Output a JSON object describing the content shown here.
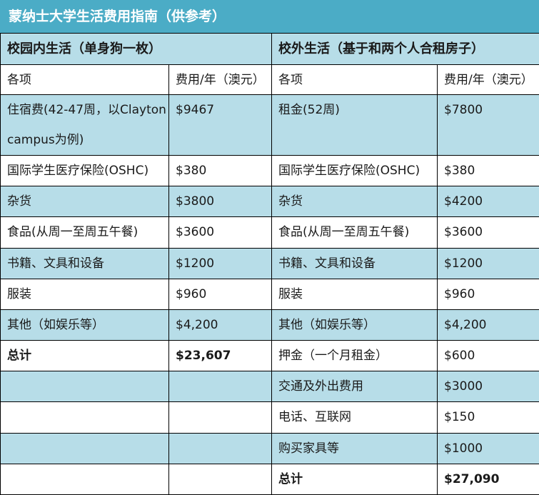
{
  "title": "蒙纳士大学生活费用指南（供参考）",
  "campus": {
    "heading": "校园内生活（单身狗一枚）",
    "col_item": "各项",
    "col_cost": "费用/年（澳元）",
    "rows": [
      {
        "item": "住宿费(42-47周，以Clayton campus为例)",
        "cost": "$9467"
      },
      {
        "item": "国际学生医疗保险(OSHC)",
        "cost": "$380"
      },
      {
        "item": "杂货",
        "cost": "$3800"
      },
      {
        "item": "食品(从周一至周五午餐)",
        "cost": "$3600"
      },
      {
        "item": "书籍、文具和设备",
        "cost": "$1200"
      },
      {
        "item": "服装",
        "cost": "$960"
      },
      {
        "item": "其他（如娱乐等）",
        "cost": "$4,200"
      },
      {
        "item": "总计",
        "cost": "$23,607"
      }
    ]
  },
  "offcampus": {
    "heading": "校外生活（基于和两个人合租房子）",
    "col_item": "各项",
    "col_cost": "费用/年（澳元）",
    "rows": [
      {
        "item": "租金(52周)",
        "cost": "$7800"
      },
      {
        "item": "国际学生医疗保险(OSHC)",
        "cost": "$380"
      },
      {
        "item": "杂货",
        "cost": "$4200"
      },
      {
        "item": "食品(从周一至周五午餐)",
        "cost": "$3600"
      },
      {
        "item": "书籍、文具和设备",
        "cost": "$1200"
      },
      {
        "item": "服装",
        "cost": "$960"
      },
      {
        "item": "其他（如娱乐等）",
        "cost": "$4,200"
      },
      {
        "item": "押金（一个月租金）",
        "cost": "$600"
      },
      {
        "item": "交通及外出费用",
        "cost": "$3000"
      },
      {
        "item": "电话、互联网",
        "cost": "$150"
      },
      {
        "item": "购买家具等",
        "cost": "$1000"
      },
      {
        "item": "总计",
        "cost": "$27,090"
      }
    ]
  }
}
